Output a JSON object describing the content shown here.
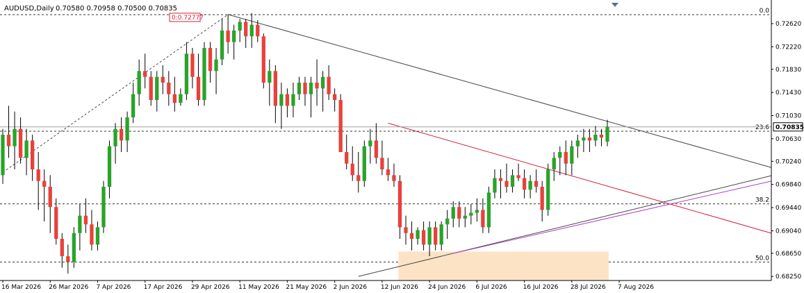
{
  "header": {
    "symbol": "AUDUSD,Daily",
    "ohlc": "0.70580 0.70958 0.70500 0.70835"
  },
  "colors": {
    "bull": "#2aa32a",
    "bear": "#e8413b",
    "trendline": "#444444",
    "red_channel": "#d2203a",
    "fib_line": "#333333",
    "purple_line": "#b040c8",
    "zone": "#fde3c6",
    "price_box_bg": "#ffffff"
  },
  "high_label": "0.72777",
  "current_price_label": "0.70835",
  "fib_levels": [
    {
      "label": "0.0",
      "price": 0.72775
    },
    {
      "label": "23.6",
      "price": 0.7076
    },
    {
      "label": "38.2",
      "price": 0.69505
    },
    {
      "label": "50.0",
      "price": 0.685
    }
  ],
  "price_axis": [
    "0.72620",
    "0.72220",
    "0.71830",
    "0.71430",
    "0.71030",
    "0.70630",
    "0.70240",
    "0.69840",
    "0.69440",
    "0.69040",
    "0.68650",
    "0.68250"
  ],
  "time_axis": [
    "16 Mar 2026",
    "26 Mar 2026",
    "7 Apr 2026",
    "17 Apr 2026",
    "29 Apr 2026",
    "11 May 2026",
    "21 May 2026",
    "2 Jun 2026",
    "12 Jun 2026",
    "24 Jun 2026",
    "6 Jul 2026",
    "16 Jul 2026",
    "28 Jul 2026",
    "7 Aug 2026"
  ],
  "chart_data": {
    "type": "candlestick",
    "title": "AUDUSD,Daily",
    "ylim": [
      0.6818,
      0.7298
    ],
    "candles": [
      [
        0.7,
        0.708,
        0.6985,
        0.707
      ],
      [
        0.707,
        0.712,
        0.703,
        0.705
      ],
      [
        0.705,
        0.711,
        0.701,
        0.708
      ],
      [
        0.708,
        0.71,
        0.702,
        0.703
      ],
      [
        0.703,
        0.708,
        0.7,
        0.706
      ],
      [
        0.706,
        0.707,
        0.699,
        0.701
      ],
      [
        0.701,
        0.704,
        0.694,
        0.699
      ],
      [
        0.699,
        0.701,
        0.692,
        0.698
      ],
      [
        0.698,
        0.7,
        0.69,
        0.6945
      ],
      [
        0.6945,
        0.696,
        0.688,
        0.689
      ],
      [
        0.689,
        0.69,
        0.684,
        0.686
      ],
      [
        0.686,
        0.688,
        0.683,
        0.685
      ],
      [
        0.685,
        0.691,
        0.684,
        0.69
      ],
      [
        0.69,
        0.695,
        0.687,
        0.693
      ],
      [
        0.693,
        0.696,
        0.69,
        0.6915
      ],
      [
        0.6915,
        0.694,
        0.687,
        0.688
      ],
      [
        0.688,
        0.692,
        0.687,
        0.691
      ],
      [
        0.691,
        0.699,
        0.69,
        0.698
      ],
      [
        0.698,
        0.706,
        0.696,
        0.705
      ],
      [
        0.705,
        0.709,
        0.702,
        0.708
      ],
      [
        0.708,
        0.71,
        0.704,
        0.706
      ],
      [
        0.706,
        0.711,
        0.704,
        0.71
      ],
      [
        0.71,
        0.716,
        0.709,
        0.714
      ],
      [
        0.714,
        0.72,
        0.712,
        0.718
      ],
      [
        0.718,
        0.721,
        0.715,
        0.717
      ],
      [
        0.717,
        0.718,
        0.712,
        0.713
      ],
      [
        0.713,
        0.718,
        0.711,
        0.717
      ],
      [
        0.717,
        0.719,
        0.714,
        0.716
      ],
      [
        0.716,
        0.718,
        0.712,
        0.714
      ],
      [
        0.714,
        0.717,
        0.711,
        0.7125
      ],
      [
        0.7125,
        0.715,
        0.712,
        0.714
      ],
      [
        0.714,
        0.723,
        0.713,
        0.721
      ],
      [
        0.721,
        0.722,
        0.715,
        0.717
      ],
      [
        0.717,
        0.721,
        0.712,
        0.713
      ],
      [
        0.713,
        0.723,
        0.712,
        0.722
      ],
      [
        0.722,
        0.723,
        0.716,
        0.718
      ],
      [
        0.718,
        0.722,
        0.714,
        0.72
      ],
      [
        0.72,
        0.727,
        0.719,
        0.725
      ],
      [
        0.725,
        0.7278,
        0.721,
        0.723
      ],
      [
        0.723,
        0.726,
        0.72,
        0.725
      ],
      [
        0.725,
        0.727,
        0.723,
        0.7265
      ],
      [
        0.7265,
        0.727,
        0.722,
        0.724
      ],
      [
        0.724,
        0.728,
        0.722,
        0.726
      ],
      [
        0.726,
        0.7268,
        0.723,
        0.724
      ],
      [
        0.724,
        0.7245,
        0.715,
        0.716
      ],
      [
        0.716,
        0.72,
        0.712,
        0.718
      ],
      [
        0.718,
        0.719,
        0.709,
        0.712
      ],
      [
        0.712,
        0.716,
        0.708,
        0.714
      ],
      [
        0.714,
        0.715,
        0.71,
        0.712
      ],
      [
        0.712,
        0.716,
        0.71,
        0.714
      ],
      [
        0.714,
        0.717,
        0.713,
        0.716
      ],
      [
        0.716,
        0.717,
        0.712,
        0.714
      ],
      [
        0.714,
        0.717,
        0.71,
        0.716
      ],
      [
        0.716,
        0.72,
        0.712,
        0.715
      ],
      [
        0.715,
        0.718,
        0.711,
        0.717
      ],
      [
        0.717,
        0.719,
        0.713,
        0.714
      ],
      [
        0.714,
        0.715,
        0.711,
        0.713
      ],
      [
        0.713,
        0.714,
        0.704,
        0.704
      ],
      [
        0.704,
        0.707,
        0.701,
        0.702
      ],
      [
        0.702,
        0.705,
        0.699,
        0.7
      ],
      [
        0.7,
        0.704,
        0.697,
        0.699
      ],
      [
        0.699,
        0.706,
        0.698,
        0.705
      ],
      [
        0.705,
        0.708,
        0.702,
        0.706
      ],
      [
        0.706,
        0.709,
        0.702,
        0.703
      ],
      [
        0.703,
        0.706,
        0.7,
        0.701
      ],
      [
        0.701,
        0.703,
        0.699,
        0.7
      ],
      [
        0.7,
        0.702,
        0.698,
        0.699
      ],
      [
        0.699,
        0.7,
        0.689,
        0.691
      ],
      [
        0.691,
        0.693,
        0.688,
        0.69
      ],
      [
        0.69,
        0.692,
        0.687,
        0.689
      ],
      [
        0.689,
        0.691,
        0.688,
        0.6905
      ],
      [
        0.6905,
        0.692,
        0.687,
        0.688
      ],
      [
        0.688,
        0.692,
        0.686,
        0.691
      ],
      [
        0.691,
        0.692,
        0.687,
        0.688
      ],
      [
        0.688,
        0.692,
        0.687,
        0.6915
      ],
      [
        0.6915,
        0.694,
        0.689,
        0.6925
      ],
      [
        0.6925,
        0.6955,
        0.691,
        0.6945
      ],
      [
        0.6945,
        0.6955,
        0.691,
        0.6925
      ],
      [
        0.6925,
        0.6945,
        0.691,
        0.693
      ],
      [
        0.693,
        0.695,
        0.6915,
        0.6935
      ],
      [
        0.6935,
        0.696,
        0.692,
        0.694
      ],
      [
        0.694,
        0.696,
        0.69,
        0.691
      ],
      [
        0.691,
        0.698,
        0.69,
        0.697
      ],
      [
        0.697,
        0.701,
        0.696,
        0.6995
      ],
      [
        0.6995,
        0.701,
        0.696,
        0.699
      ],
      [
        0.699,
        0.702,
        0.697,
        0.698
      ],
      [
        0.698,
        0.701,
        0.697,
        0.7
      ],
      [
        0.7,
        0.702,
        0.699,
        0.6995
      ],
      [
        0.6995,
        0.701,
        0.696,
        0.6975
      ],
      [
        0.6975,
        0.7,
        0.696,
        0.699
      ],
      [
        0.699,
        0.701,
        0.697,
        0.698
      ],
      [
        0.698,
        0.699,
        0.692,
        0.694
      ],
      [
        0.694,
        0.702,
        0.693,
        0.701
      ],
      [
        0.701,
        0.704,
        0.699,
        0.703
      ],
      [
        0.703,
        0.705,
        0.7,
        0.704
      ],
      [
        0.704,
        0.706,
        0.7,
        0.702
      ],
      [
        0.702,
        0.706,
        0.7,
        0.705
      ],
      [
        0.705,
        0.707,
        0.703,
        0.706
      ],
      [
        0.706,
        0.708,
        0.704,
        0.7065
      ],
      [
        0.7065,
        0.708,
        0.704,
        0.706
      ],
      [
        0.706,
        0.7085,
        0.705,
        0.707
      ],
      [
        0.707,
        0.708,
        0.705,
        0.7065
      ],
      [
        0.7058,
        0.70958,
        0.705,
        0.70835
      ]
    ]
  }
}
